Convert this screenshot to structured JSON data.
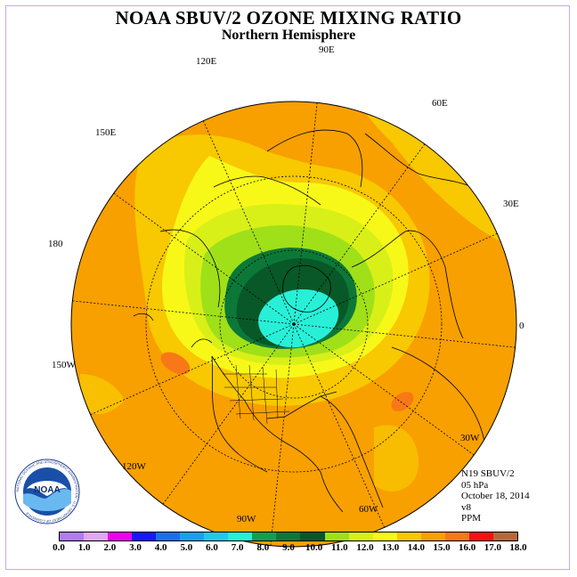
{
  "header": {
    "title": "NOAA SBUV/2 OZONE MIXING RATIO",
    "subtitle": "Northern Hemisphere"
  },
  "longitude_labels": [
    "90E",
    "60E",
    "30E",
    "0",
    "30W",
    "60W",
    "90W",
    "120W",
    "150W",
    "180",
    "150E",
    "120E"
  ],
  "info": {
    "satellite": "N19 SBUV/2",
    "level": "05 hPa",
    "date": "October 18, 2014",
    "version": "v8",
    "units": "PPM"
  },
  "colorbar": {
    "colors": [
      "#b07cf0",
      "#e0a8f0",
      "#f000f0",
      "#1818f8",
      "#1870f0",
      "#18a0f0",
      "#20c8f0",
      "#28f0d8",
      "#10a050",
      "#0c7838",
      "#085828",
      "#a0e018",
      "#d8f018",
      "#f8f818",
      "#f8c800",
      "#f8a000",
      "#f87818",
      "#f81010",
      "#b86838"
    ],
    "tick_labels": [
      "0.0",
      "1.0",
      "2.0",
      "3.0",
      "4.0",
      "5.0",
      "6.0",
      "7.0",
      "8.0",
      "9.0",
      "10.0",
      "11.0",
      "12.0",
      "13.0",
      "14.0",
      "15.0",
      "16.0",
      "17.0",
      "18.0"
    ]
  },
  "logo": {
    "text": "NOAA",
    "ring_text": "NATIONAL OCEANIC AND ATMOSPHERIC ADMINISTRATION · U.S. DEPARTMENT OF COMMERCE"
  }
}
